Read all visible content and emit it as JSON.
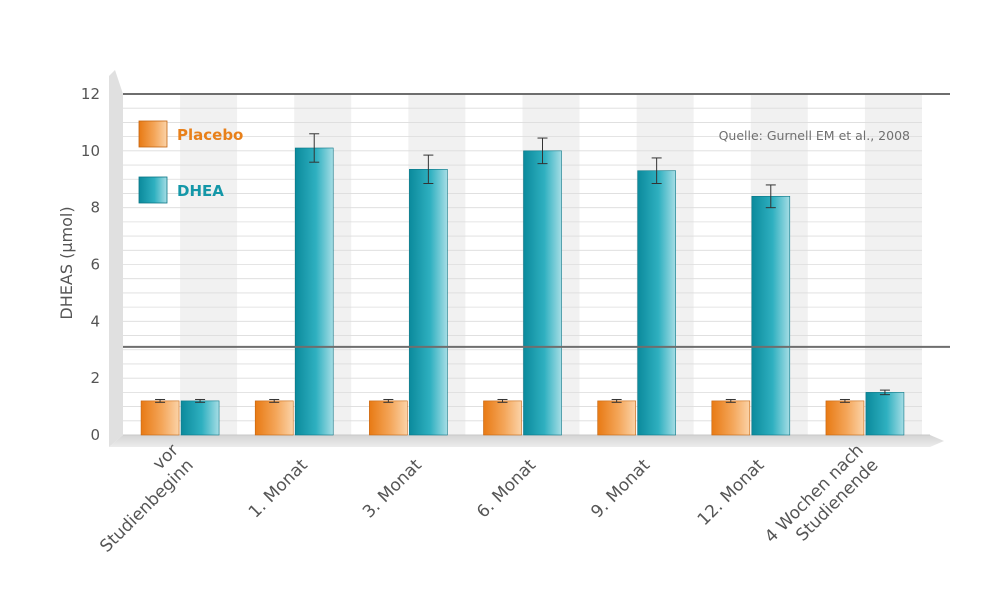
{
  "chart_data": {
    "type": "bar",
    "title": "",
    "ylabel": "DHEAS (µmol)",
    "xlabel": "",
    "ylim": [
      0,
      12
    ],
    "yticks": [
      "0",
      "2",
      "4",
      "6",
      "8",
      "10",
      "12"
    ],
    "categories": [
      [
        "vor",
        "Studienbeginn"
      ],
      [
        "1. Monat"
      ],
      [
        "3. Monat"
      ],
      [
        "6. Monat"
      ],
      [
        "9. Monat"
      ],
      [
        "12. Monat"
      ],
      [
        "4 Wochen nach",
        "Studienende"
      ]
    ],
    "series": [
      {
        "name": "Placebo",
        "color": "#ee8a2a",
        "values": [
          1.2,
          1.2,
          1.2,
          1.2,
          1.2,
          1.2,
          1.2
        ],
        "errors": [
          0.05,
          0.05,
          0.05,
          0.05,
          0.05,
          0.05,
          0.05
        ]
      },
      {
        "name": "DHEA",
        "color": "#1497a8",
        "values": [
          1.2,
          10.1,
          9.35,
          10.0,
          9.3,
          8.4,
          1.5
        ],
        "errors": [
          0.05,
          0.5,
          0.5,
          0.45,
          0.45,
          0.4,
          0.08
        ]
      }
    ],
    "reference_lines": [
      12,
      3.1
    ],
    "source": "Quelle: Gurnell EM et al., 2008",
    "legend_position": "top-left",
    "grid": true
  }
}
